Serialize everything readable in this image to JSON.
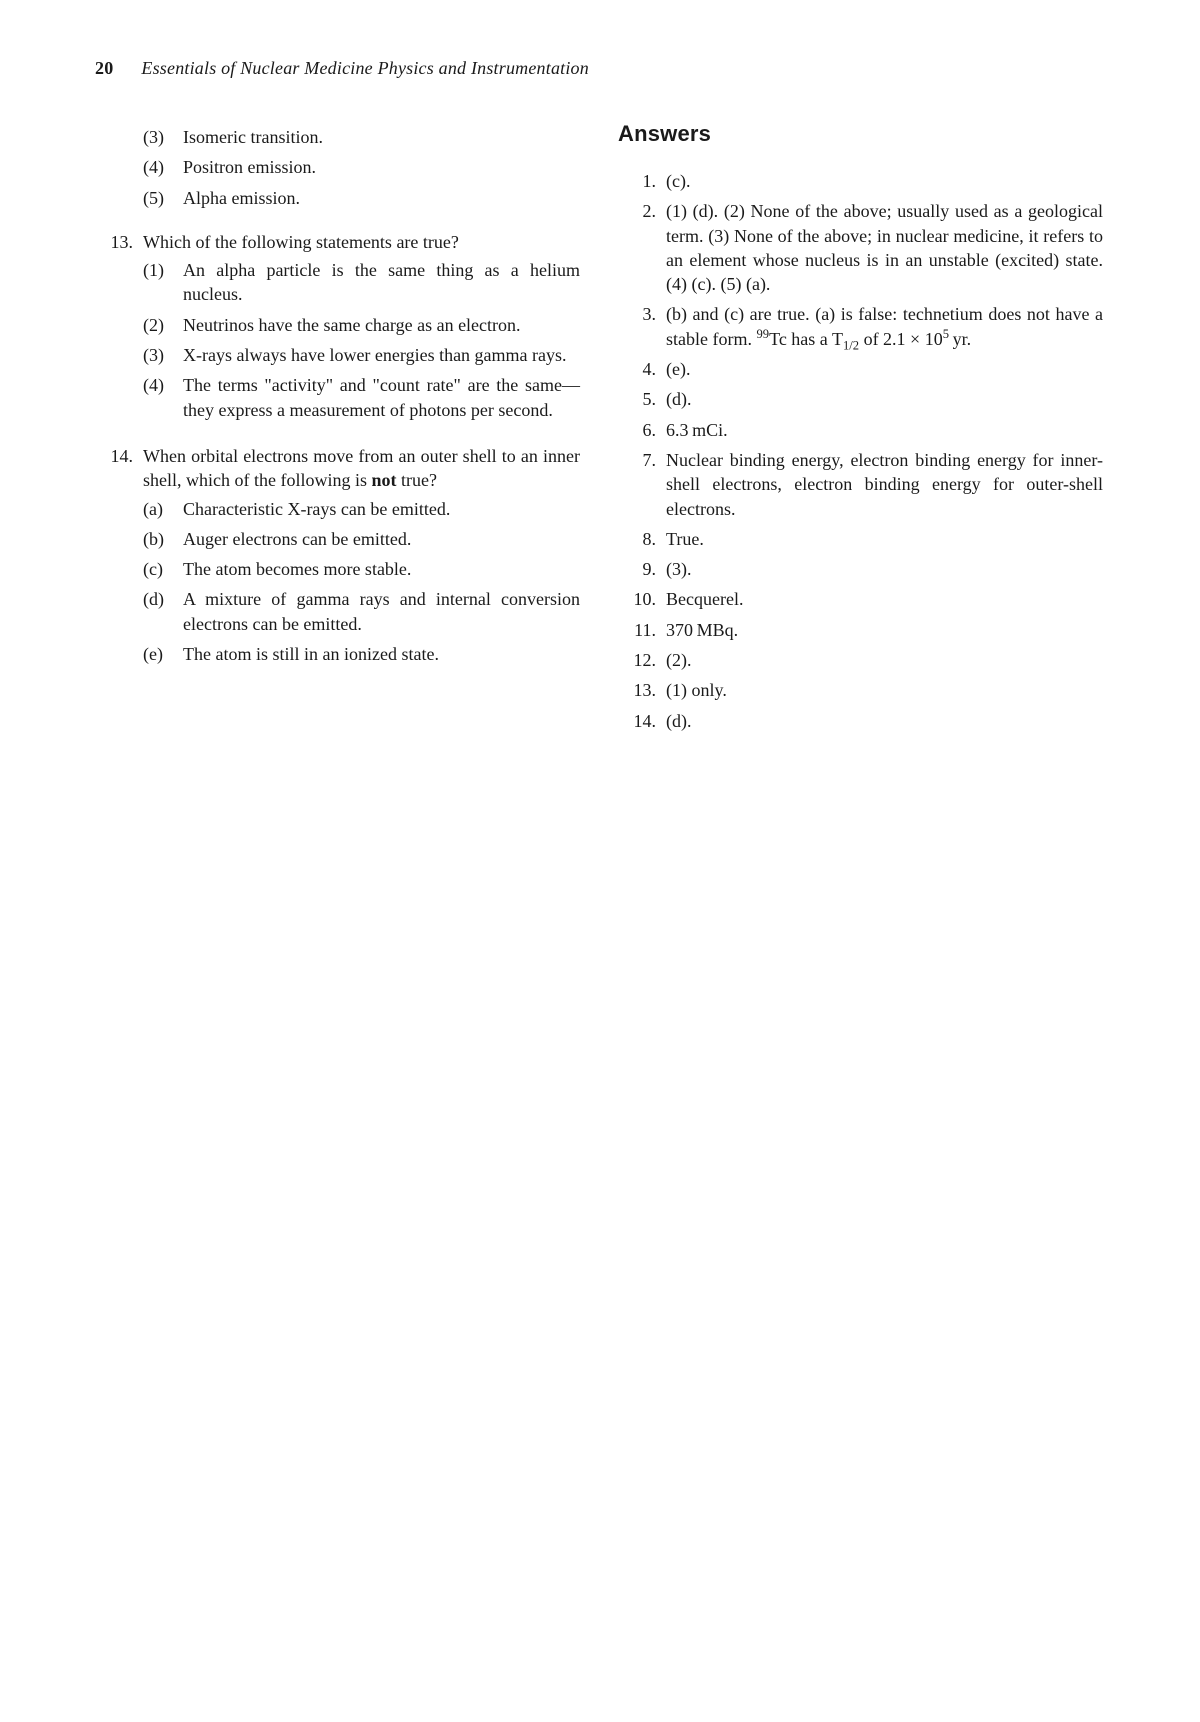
{
  "page": {
    "number": "20",
    "running_title": "Essentials of Nuclear Medicine Physics and Instrumentation"
  },
  "left": {
    "continuation_items": [
      {
        "marker": "(3)",
        "text": "Isomeric transition."
      },
      {
        "marker": "(4)",
        "text": "Positron emission."
      },
      {
        "marker": "(5)",
        "text": "Alpha emission."
      }
    ],
    "questions": [
      {
        "number": "13.",
        "stem": "Which of the following statements are true?",
        "options": [
          {
            "marker": "(1)",
            "text": "An alpha particle is the same thing as a helium nucleus."
          },
          {
            "marker": "(2)",
            "text": "Neutrinos have the same charge as an electron."
          },
          {
            "marker": "(3)",
            "text": "X-rays always have lower energies than gamma rays."
          },
          {
            "marker": "(4)",
            "text": "The terms \"activity\" and \"count rate\" are the same—they express a measurement of photons per second."
          }
        ]
      },
      {
        "number": "14.",
        "stem_prefix": "When orbital electrons move from an outer shell to an inner shell, which of the following is ",
        "stem_bold": "not",
        "stem_suffix": " true?",
        "options": [
          {
            "marker": "(a)",
            "text": "Characteristic X-rays can be emitted."
          },
          {
            "marker": "(b)",
            "text": "Auger electrons can be emitted."
          },
          {
            "marker": "(c)",
            "text": "The atom becomes more stable."
          },
          {
            "marker": "(d)",
            "text": "A mixture of gamma rays and internal conversion electrons can be emitted."
          },
          {
            "marker": "(e)",
            "text": "The atom is still in an ionized state."
          }
        ]
      }
    ]
  },
  "right": {
    "heading": "Answers",
    "answers": [
      {
        "n": "1.",
        "text": "(c)."
      },
      {
        "n": "2.",
        "text": "(1) (d). (2) None of the above; usually used as a geological term. (3) None of the above; in nuclear medicine, it refers to an element whose nucleus is in an unstable (excited) state. (4) (c). (5) (a)."
      },
      {
        "n": "3.",
        "html": "(b) and (c) are true. (a) is false: technetium does not have a stable form. <sup>99</sup>Tc has a T<sub>1/2</sub> of 2.1&nbsp;&times;&nbsp;10<sup>5</sup>&thinsp;yr."
      },
      {
        "n": "4.",
        "text": "(e)."
      },
      {
        "n": "5.",
        "text": "(d)."
      },
      {
        "n": "6.",
        "text": "6.3 mCi."
      },
      {
        "n": "7.",
        "text": "Nuclear binding energy, electron binding energy for inner-shell electrons, electron binding energy for outer-shell electrons."
      },
      {
        "n": "8.",
        "text": "True."
      },
      {
        "n": "9.",
        "text": "(3)."
      },
      {
        "n": "10.",
        "text": "Becquerel."
      },
      {
        "n": "11.",
        "text": "370 MBq."
      },
      {
        "n": "12.",
        "text": "(2)."
      },
      {
        "n": "13.",
        "text": "(1) only."
      },
      {
        "n": "14.",
        "text": "(d)."
      }
    ]
  }
}
